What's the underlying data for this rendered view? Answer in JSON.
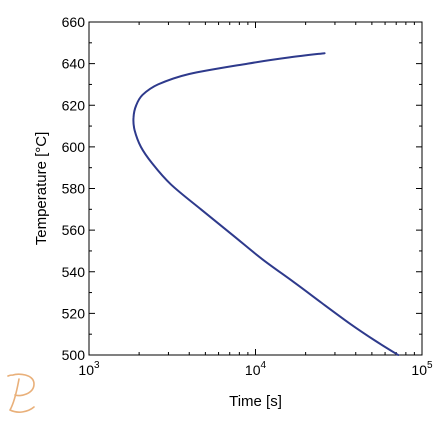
{
  "chart_data": {
    "type": "line",
    "title": "",
    "xlabel": "Time [s]",
    "ylabel": "Temperature [°C]",
    "xscale": "log",
    "xlim": [
      1000,
      100000
    ],
    "ylim": [
      500,
      660
    ],
    "x_ticks": [
      {
        "value": 1000,
        "base": "10",
        "exp": "3"
      },
      {
        "value": 10000,
        "base": "10",
        "exp": "4"
      },
      {
        "value": 100000,
        "base": "10",
        "exp": "5"
      }
    ],
    "y_ticks": [
      {
        "value": 500,
        "label": "500"
      },
      {
        "value": 520,
        "label": "520"
      },
      {
        "value": 540,
        "label": "540"
      },
      {
        "value": 560,
        "label": "560"
      },
      {
        "value": 580,
        "label": "580"
      },
      {
        "value": 600,
        "label": "600"
      },
      {
        "value": 620,
        "label": "620"
      },
      {
        "value": 640,
        "label": "640"
      },
      {
        "value": 660,
        "label": "660"
      }
    ],
    "grid": false,
    "legend": "none",
    "series": [
      {
        "color": "#2e3a8c",
        "points": [
          [
            72000,
            500
          ],
          [
            52000,
            507
          ],
          [
            37000,
            515
          ],
          [
            25000,
            525
          ],
          [
            17000,
            535
          ],
          [
            11000,
            546
          ],
          [
            7200,
            558
          ],
          [
            4700,
            570
          ],
          [
            3100,
            582
          ],
          [
            2400,
            592
          ],
          [
            2050,
            600
          ],
          [
            1880,
            608
          ],
          [
            1850,
            614
          ],
          [
            1920,
            620
          ],
          [
            2100,
            625
          ],
          [
            2600,
            630
          ],
          [
            4000,
            635
          ],
          [
            9000,
            640
          ],
          [
            16000,
            643
          ],
          [
            26000,
            645
          ]
        ]
      }
    ]
  },
  "watermark": {
    "icon": "thermo-calc-logo-icon",
    "color": "#e9b07a"
  }
}
